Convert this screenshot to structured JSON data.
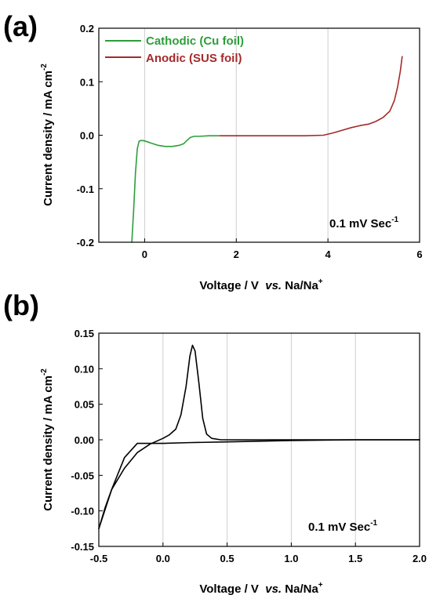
{
  "chart_data": [
    {
      "type": "line",
      "panel_label": "(a)",
      "xlabel": {
        "main": "Voltage / V  ",
        "italic": "vs.",
        "rest": " Na/Na",
        "sup": "+"
      },
      "ylabel": {
        "main": "Current density / mA cm",
        "sup": "-2"
      },
      "xlim": [
        -1,
        6
      ],
      "ylim": [
        -0.2,
        0.2
      ],
      "xticks": [
        0,
        2,
        4,
        6
      ],
      "xtick_labels": [
        "0",
        "2",
        "4",
        "6"
      ],
      "yticks": [
        -0.2,
        -0.1,
        0.0,
        0.1,
        0.2
      ],
      "ytick_labels": [
        "-0.2",
        "-0.1",
        "0.0",
        "0.1",
        "0.2"
      ],
      "grid": "vertical",
      "legend_position": "top-left",
      "annotation": {
        "main": "0.1 mV Sec",
        "sup": "-1"
      },
      "series": [
        {
          "name": "Cathodic (Cu foil)",
          "color": "#2e9e3a",
          "x": [
            -0.28,
            -0.24,
            -0.2,
            -0.16,
            -0.12,
            -0.08,
            -0.03,
            0.05,
            0.15,
            0.3,
            0.45,
            0.6,
            0.75,
            0.85,
            0.92,
            1.0,
            1.08,
            1.2,
            1.4,
            1.65
          ],
          "y": [
            -0.2,
            -0.14,
            -0.07,
            -0.025,
            -0.011,
            -0.01,
            -0.01,
            -0.012,
            -0.015,
            -0.019,
            -0.021,
            -0.021,
            -0.019,
            -0.016,
            -0.01,
            -0.004,
            -0.002,
            -0.002,
            -0.001,
            -0.001
          ]
        },
        {
          "name": "Anodic (SUS foil)",
          "color": "#a52a2a",
          "x": [
            1.65,
            2.0,
            2.5,
            3.0,
            3.5,
            3.9,
            4.1,
            4.3,
            4.5,
            4.7,
            4.9,
            5.05,
            5.2,
            5.35,
            5.45,
            5.52,
            5.58,
            5.62
          ],
          "y": [
            -0.001,
            -0.001,
            -0.001,
            -0.001,
            -0.001,
            0.0,
            0.004,
            0.009,
            0.014,
            0.018,
            0.021,
            0.026,
            0.033,
            0.045,
            0.065,
            0.09,
            0.12,
            0.147
          ]
        }
      ]
    },
    {
      "type": "line",
      "panel_label": "(b)",
      "xlabel": {
        "main": "Voltage / V  ",
        "italic": "vs.",
        "rest": " Na/Na",
        "sup": "+"
      },
      "ylabel": {
        "main": "Current density / mA cm",
        "sup": "-2"
      },
      "xlim": [
        -0.5,
        2.0
      ],
      "ylim": [
        -0.15,
        0.15
      ],
      "xticks": [
        -0.5,
        0.0,
        0.5,
        1.0,
        1.5,
        2.0
      ],
      "xtick_labels": [
        "-0.5",
        "0.0",
        "0.5",
        "1.0",
        "1.5",
        "2.0"
      ],
      "yticks": [
        -0.15,
        -0.1,
        -0.05,
        0.0,
        0.05,
        0.1,
        0.15
      ],
      "ytick_labels": [
        "-0.15",
        "-0.10",
        "-0.05",
        "0.00",
        "0.05",
        "0.10",
        "0.15"
      ],
      "grid": "vertical",
      "annotation": {
        "main": "0.1 mV Sec",
        "sup": "-1"
      },
      "series": [
        {
          "color": "#000000",
          "x": [
            2.0,
            1.5,
            1.0,
            0.5,
            0.2,
            0.0,
            -0.1,
            -0.2,
            -0.3,
            -0.4,
            -0.45,
            -0.5
          ],
          "y": [
            0.0,
            0.0,
            -0.001,
            -0.003,
            -0.004,
            -0.005,
            -0.005,
            -0.005,
            -0.025,
            -0.07,
            -0.095,
            -0.125
          ]
        },
        {
          "color": "#000000",
          "x": [
            -0.5,
            -0.4,
            -0.3,
            -0.2,
            -0.1,
            0.0,
            0.05,
            0.1,
            0.14,
            0.18,
            0.21,
            0.23,
            0.25,
            0.28,
            0.31,
            0.34,
            0.38,
            0.45,
            0.6,
            1.0,
            1.5,
            2.0
          ],
          "y": [
            -0.125,
            -0.07,
            -0.04,
            -0.018,
            -0.006,
            0.002,
            0.007,
            0.015,
            0.035,
            0.075,
            0.118,
            0.133,
            0.125,
            0.08,
            0.03,
            0.008,
            0.002,
            0.0,
            0.0,
            0.0,
            0.0,
            0.0
          ]
        }
      ]
    }
  ]
}
